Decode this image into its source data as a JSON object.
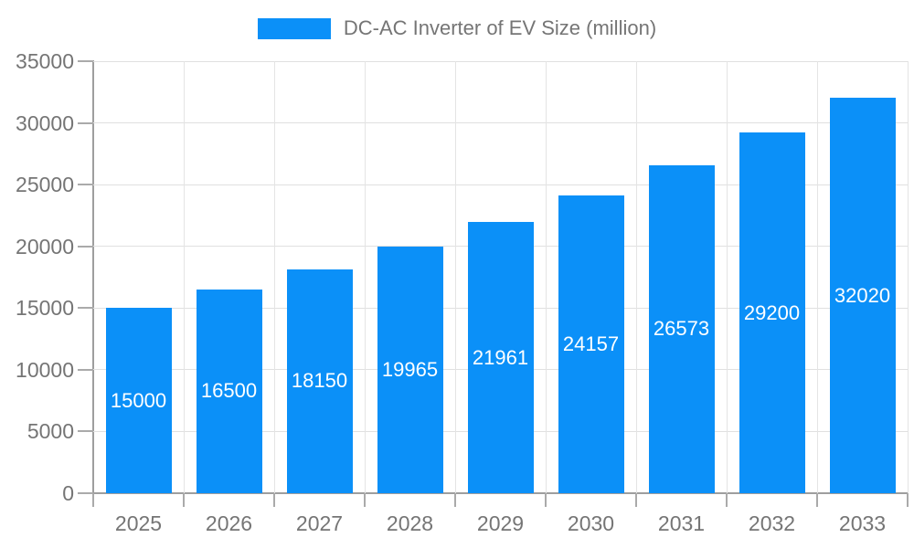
{
  "chart_data": {
    "type": "bar",
    "legend_label": "DC-AC Inverter of EV Size (million)",
    "legend_position": "top-center",
    "categories": [
      "2025",
      "2026",
      "2027",
      "2028",
      "2029",
      "2030",
      "2031",
      "2032",
      "2033"
    ],
    "values": [
      15000,
      16500,
      18150,
      19965,
      21961,
      24157,
      26573,
      29200,
      32020
    ],
    "value_labels": [
      "15000",
      "16500",
      "18150",
      "19965",
      "21961",
      "24157",
      "26573",
      "29200",
      "32020"
    ],
    "xlabel": "",
    "ylabel": "",
    "ylim": [
      0,
      35000
    ],
    "yticks": [
      0,
      5000,
      10000,
      15000,
      20000,
      25000,
      30000,
      35000
    ],
    "grid": true,
    "colors": {
      "bar": "#0b90f8",
      "bar_value_text": "#ffffff",
      "axis_line": "#9e9e9e",
      "tick": "#aaaaaa",
      "gridline": "#e0e0e0",
      "axis_text": "#757575",
      "legend_text": "#757575",
      "background": "#ffffff"
    }
  }
}
